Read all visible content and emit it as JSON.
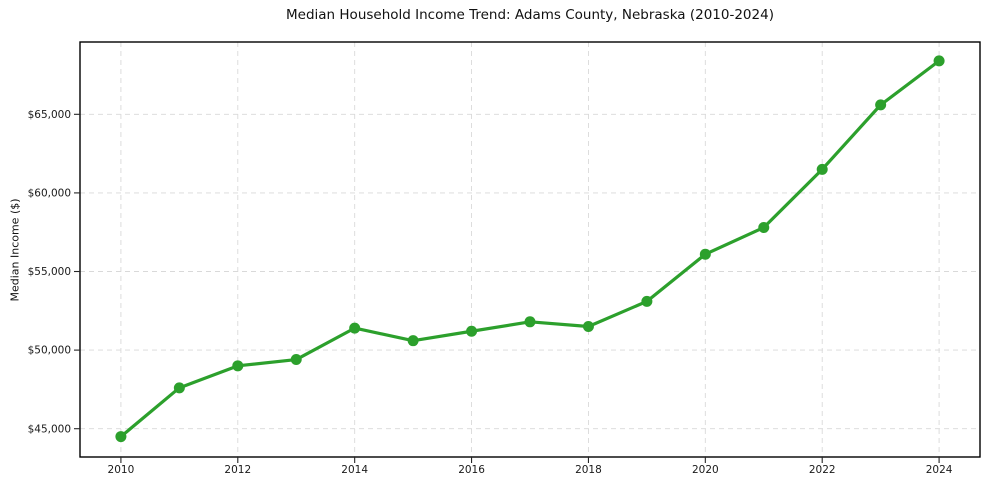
{
  "figure": {
    "background": "#ffffff"
  },
  "chart_data": {
    "type": "line",
    "title": "Median Household Income Trend: Adams County, Nebraska (2010-2024)",
    "xlabel": "",
    "ylabel": "Median Income ($)",
    "x": [
      2010,
      2011,
      2012,
      2013,
      2014,
      2015,
      2016,
      2017,
      2018,
      2019,
      2020,
      2021,
      2022,
      2023,
      2024
    ],
    "values": [
      44500,
      47600,
      49000,
      49400,
      51400,
      50600,
      51200,
      51800,
      51500,
      53100,
      56100,
      57800,
      61500,
      65600,
      68400
    ],
    "xlim": [
      2009.3,
      2024.7
    ],
    "ylim": [
      43200,
      69600
    ],
    "x_ticks": [
      2010,
      2012,
      2014,
      2016,
      2018,
      2020,
      2022,
      2024
    ],
    "x_tick_labels": [
      "2010",
      "2012",
      "2014",
      "2016",
      "2018",
      "2020",
      "2022",
      "2024"
    ],
    "y_ticks": [
      45000,
      50000,
      55000,
      60000,
      65000
    ],
    "y_tick_labels": [
      "$45,000",
      "$50,000",
      "$55,000",
      "$60,000",
      "$65,000"
    ],
    "grid": true,
    "grid_style": "dashed",
    "grid_color": "#d9d9d9",
    "line_color": "#2ca02c",
    "marker": "circle",
    "spine_color": "#000000",
    "legend_position": "none"
  }
}
